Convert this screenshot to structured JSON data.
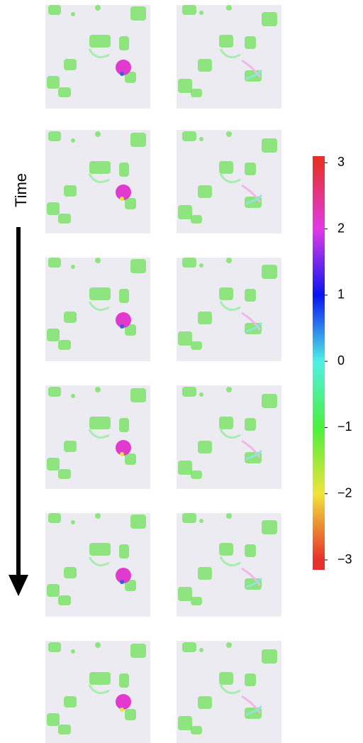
{
  "time_label": "Time",
  "colorbar": {
    "ylim": [
      -3.15,
      3.1
    ],
    "ticks": [
      3,
      2,
      1,
      0,
      {
        "value": -1,
        "label": "−1"
      },
      {
        "value": -2,
        "label": "−2"
      },
      {
        "value": -3,
        "label": "−3"
      }
    ]
  }
}
